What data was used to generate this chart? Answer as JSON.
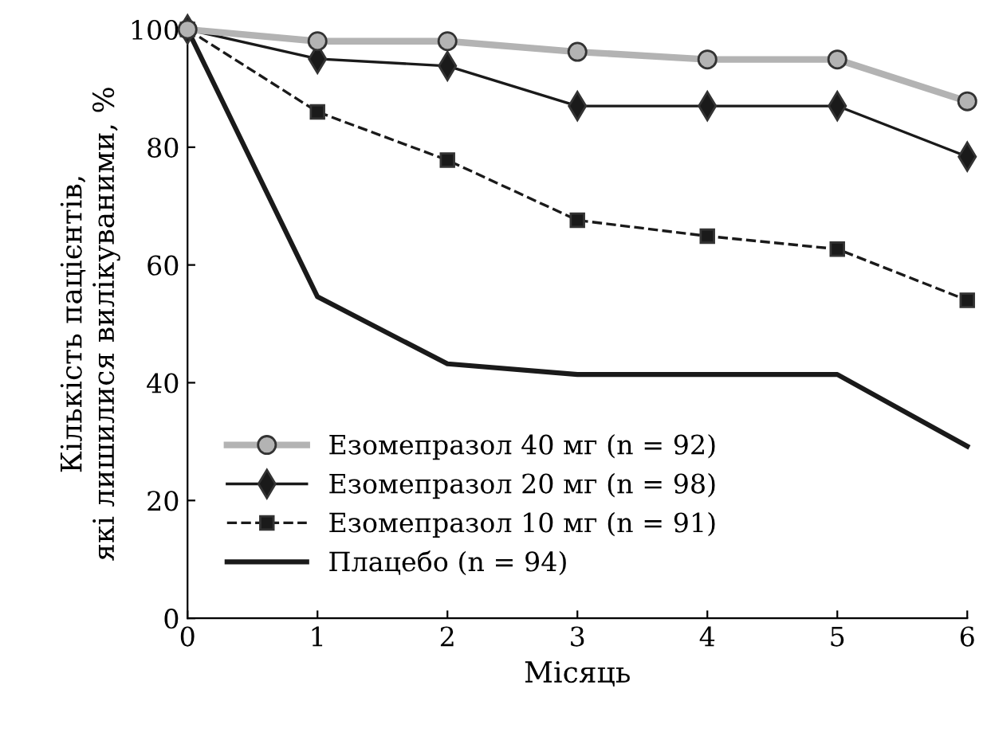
{
  "chart_data": {
    "type": "line",
    "xlabel": "Місяць",
    "ylabel": "Кількість пацієнтів,\nякі лишилися вилікуваними, %",
    "x": [
      0,
      1,
      2,
      3,
      4,
      5,
      6
    ],
    "xlim": [
      0,
      6
    ],
    "xticks": [
      0,
      1,
      2,
      3,
      4,
      5,
      6
    ],
    "ylim": [
      0,
      100
    ],
    "yticks": [
      0,
      20,
      40,
      60,
      80,
      100
    ],
    "grid": false,
    "legend": "bottom left",
    "series": [
      {
        "name": "Езомепразол 40 мг (n = 92)",
        "color": "#b3b3b3",
        "marker": "circle",
        "line_style": "solid",
        "values": [
          100,
          98,
          98,
          96.2,
          94.9,
          94.9,
          87.8
        ]
      },
      {
        "name": "Езомепразол 20 мг (n = 98)",
        "color": "#1a1a1a",
        "marker": "diamond",
        "line_style": "solid",
        "values": [
          100,
          95,
          93.8,
          87,
          87,
          87,
          78.4
        ]
      },
      {
        "name": "Езомепразол 10 мг (n = 91)",
        "color": "#1a1a1a",
        "marker": "square",
        "line_style": "dashed",
        "values": [
          100,
          86,
          77.8,
          67.6,
          64.9,
          62.7,
          54
        ]
      },
      {
        "name": "Плацебо (n = 94)",
        "color": "#1a1a1a",
        "marker": "none",
        "line_style": "solid",
        "values": [
          100,
          54.6,
          43.2,
          41.4,
          41.4,
          41.4,
          29.2
        ]
      }
    ]
  }
}
